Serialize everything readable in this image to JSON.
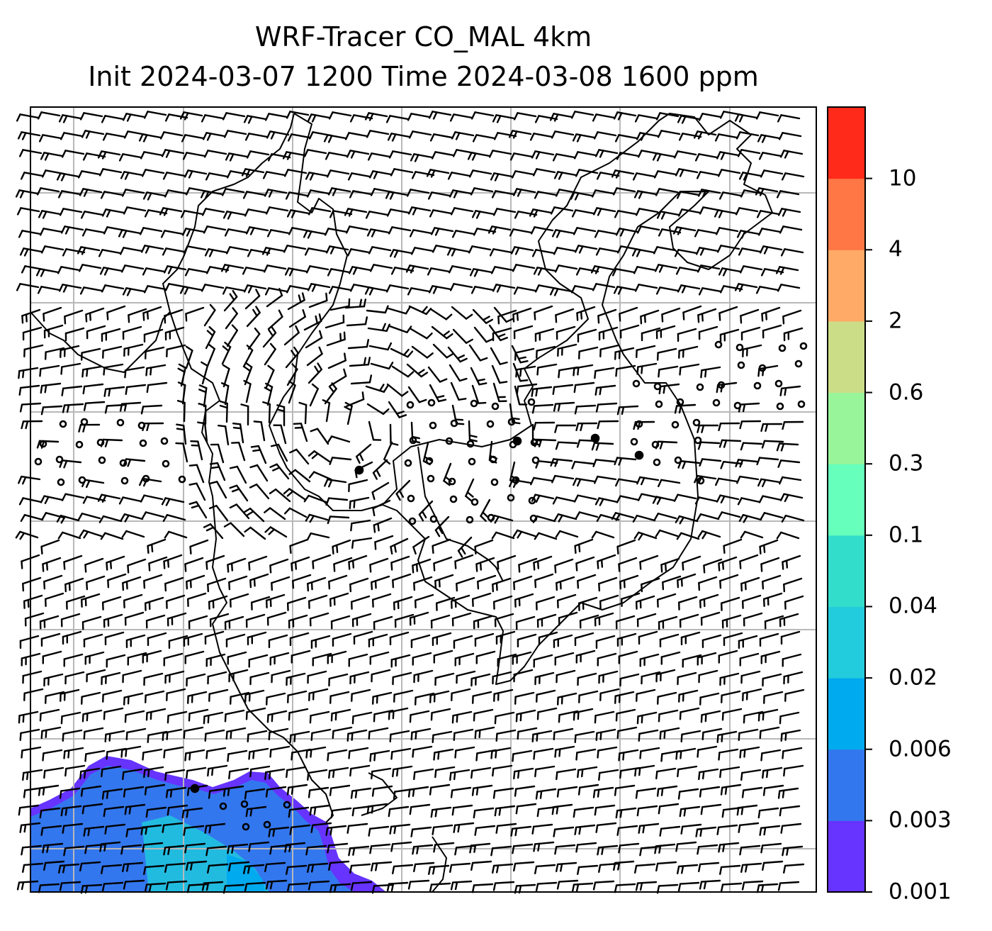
{
  "title": {
    "line1": "WRF-Tracer CO_MAL 4km",
    "line2": "Init 2024-03-07 1200 Time 2024-03-08 1600 ppm"
  },
  "colorbar": {
    "levels": [
      "0.001",
      "0.003",
      "0.006",
      "0.02",
      "0.04",
      "0.1",
      "0.3",
      "0.6",
      "2",
      "4",
      "10"
    ],
    "colors": [
      "#6633ff",
      "#3377ee",
      "#00aaee",
      "#22ccdd",
      "#33ddcc",
      "#66ffbb",
      "#99f599",
      "#ccdd88",
      "#ffaa66",
      "#ff7744",
      "#ff2a1a"
    ]
  },
  "map": {
    "variable": "CO_MAL tracer concentration (ppm)",
    "overlay": "wind barbs",
    "gridlines": true,
    "plume_location": "bottom-left"
  }
}
